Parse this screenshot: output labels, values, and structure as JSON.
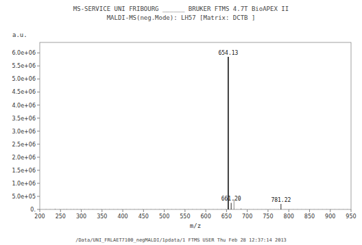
{
  "chart_data": {
    "type": "spectrum",
    "title": "MS-SERVICE  UNI FRIBOURG  ______  BRUKER FTMS 4.7T BioAPEX II",
    "subtitle": "MALDI-MS(neg.Mode):   LH57    [Matrix:   DCTB ]",
    "footer": "/Data/UNI_FRLAET7100_negMALDI/1pdata/1   FTMS USER  Thu Feb 28 12:37:14 2013",
    "x_label": "m/z",
    "y_label": "a.u.",
    "xlim": [
      200,
      950
    ],
    "ylim": [
      0,
      6400000
    ],
    "xticks": [
      200,
      250,
      300,
      350,
      400,
      450,
      500,
      550,
      600,
      650,
      700,
      750,
      800,
      850,
      900,
      950
    ],
    "yticks": [
      {
        "value": 0,
        "label": "0."
      },
      {
        "value": 500000,
        "label": "5.0e+05"
      },
      {
        "value": 1000000,
        "label": "1.0e+06"
      },
      {
        "value": 1500000,
        "label": "1.5e+06"
      },
      {
        "value": 2000000,
        "label": "2.0e+06"
      },
      {
        "value": 2500000,
        "label": "2.5e+06"
      },
      {
        "value": 3000000,
        "label": "3.0e+06"
      },
      {
        "value": 3500000,
        "label": "3.5e+06"
      },
      {
        "value": 4000000,
        "label": "4.0e+06"
      },
      {
        "value": 4500000,
        "label": "4.5e+06"
      },
      {
        "value": 5000000,
        "label": "5.0e+06"
      },
      {
        "value": 5500000,
        "label": "5.5e+06"
      },
      {
        "value": 6000000,
        "label": "6.0e+06"
      }
    ],
    "color": "#111111",
    "series": [
      {
        "x": [
          654.13,
          661.2,
          781.22
        ],
        "values": [
          5850000,
          250000,
          210000
        ],
        "labels": [
          "654.13",
          "661.20",
          "781.22"
        ]
      },
      {
        "x": [
          215,
          225,
          237,
          248,
          258,
          265,
          275,
          282,
          290,
          298,
          308,
          318,
          328,
          338,
          348,
          358,
          368,
          378,
          388,
          398,
          408,
          418,
          428,
          438,
          448,
          458,
          468,
          478,
          488,
          498,
          508,
          518,
          528,
          538,
          548,
          558,
          568,
          578,
          588,
          598,
          608,
          618,
          628,
          638,
          648,
          668,
          675,
          685,
          695,
          705,
          715,
          725,
          735,
          745,
          755,
          765,
          775,
          791,
          801,
          811,
          821,
          831,
          841,
          851,
          861,
          871,
          881,
          891,
          901,
          911,
          921,
          931,
          941
        ],
        "values": [
          8000,
          6000,
          22000,
          8000,
          9000,
          12000,
          7000,
          8000,
          9000,
          7000,
          8000,
          7000,
          8000,
          7000,
          8000,
          6000,
          7000,
          6000,
          7000,
          6000,
          7000,
          6000,
          7000,
          6000,
          7000,
          6000,
          7000,
          6000,
          7000,
          6000,
          7000,
          6000,
          7000,
          6000,
          7000,
          6000,
          7000,
          6000,
          7000,
          6000,
          7000,
          6000,
          7000,
          6000,
          8000,
          380000,
          5000,
          35000,
          6000,
          5000,
          5000,
          5000,
          5000,
          5000,
          5000,
          5000,
          5000,
          5000,
          5000,
          5000,
          5000,
          5000,
          5000,
          5000,
          5000,
          5000,
          5000,
          5000,
          5000,
          5000,
          5000,
          5000,
          5000
        ]
      }
    ]
  }
}
